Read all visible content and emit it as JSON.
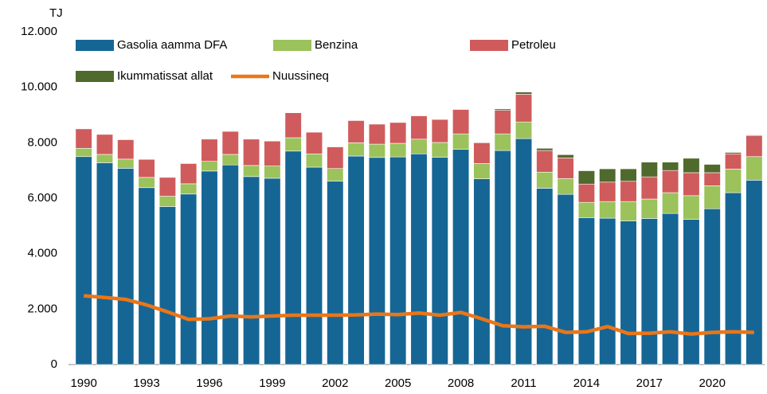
{
  "chart_data": {
    "type": "bar",
    "stacked": true,
    "y_label": "TJ",
    "categories": [
      "1990",
      null,
      null,
      "1993",
      null,
      null,
      "1996",
      null,
      null,
      "1999",
      null,
      null,
      "2002",
      null,
      null,
      "2005",
      null,
      null,
      "2008",
      null,
      null,
      "2011",
      null,
      null,
      "2014",
      null,
      null,
      "2017",
      null,
      null,
      "2020",
      null,
      null
    ],
    "series": [
      {
        "name": "Gasolia aamma DFA",
        "color": "#166695",
        "values": [
          7500,
          7280,
          7080,
          6380,
          5700,
          6150,
          6980,
          7200,
          6780,
          6720,
          7700,
          7120,
          6620,
          7520,
          7470,
          7490,
          7600,
          7480,
          7760,
          6700,
          7720,
          8150,
          6360,
          6140,
          5300,
          5280,
          5180,
          5270,
          5450,
          5240,
          5620,
          6200,
          6650
        ]
      },
      {
        "name": "Benzina",
        "color": "#9bc25b",
        "values": [
          300,
          300,
          330,
          370,
          370,
          370,
          350,
          380,
          400,
          440,
          480,
          480,
          450,
          480,
          480,
          490,
          530,
          530,
          560,
          550,
          600,
          600,
          580,
          570,
          550,
          600,
          700,
          700,
          750,
          850,
          830,
          850,
          850
        ]
      },
      {
        "name": "Petroleu",
        "color": "#d05b5c",
        "values": [
          700,
          720,
          700,
          650,
          680,
          730,
          800,
          830,
          950,
          900,
          900,
          780,
          780,
          800,
          720,
          750,
          840,
          830,
          880,
          750,
          850,
          1000,
          780,
          740,
          660,
          700,
          730,
          800,
          800,
          830,
          470,
          550,
          750
        ]
      },
      {
        "name": "Ikummatissat allat",
        "color": "#4f6a2c",
        "values": [
          0,
          0,
          0,
          0,
          0,
          0,
          0,
          0,
          0,
          0,
          0,
          0,
          0,
          0,
          0,
          0,
          0,
          0,
          0,
          0,
          50,
          80,
          80,
          120,
          480,
          480,
          450,
          530,
          300,
          520,
          300,
          50,
          30
        ]
      },
      {
        "name": "Nuussineq",
        "color": "#ea7619",
        "type": "line",
        "values": [
          2480,
          2420,
          2350,
          2150,
          1900,
          1630,
          1650,
          1750,
          1720,
          1750,
          1780,
          1780,
          1780,
          1790,
          1820,
          1800,
          1860,
          1780,
          1880,
          1650,
          1400,
          1360,
          1380,
          1160,
          1180,
          1370,
          1120,
          1130,
          1180,
          1100,
          1160,
          1180,
          1160
        ]
      }
    ],
    "ylim": [
      0,
      12000
    ],
    "yticks": [
      0,
      {
        "value": 2000,
        "label": "2.000"
      },
      {
        "value": 4000,
        "label": "4.000"
      },
      {
        "value": 6000,
        "label": "6.000"
      },
      {
        "value": 8000,
        "label": "8.000"
      },
      {
        "value": 10000,
        "label": "10.000"
      },
      {
        "value": 12000,
        "label": "12.000"
      }
    ],
    "grid": false,
    "legend": "top"
  }
}
